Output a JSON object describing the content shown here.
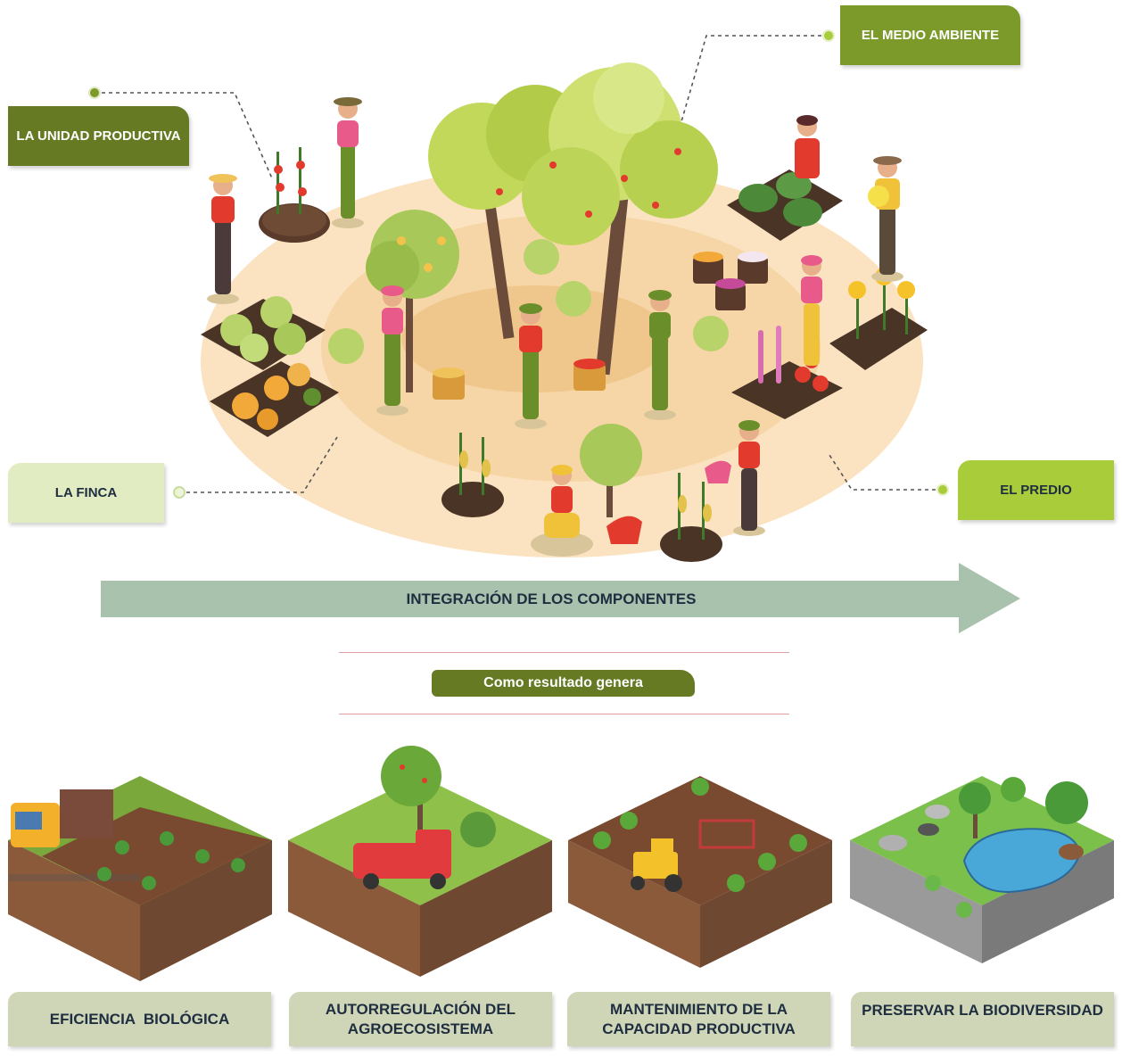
{
  "components": {
    "unidad_productiva": "LA UNIDAD PRODUCTIVA",
    "medio_ambiente": "EL MEDIO AMBIENTE",
    "finca": "LA FINCA",
    "predio": "EL PREDIO"
  },
  "arrow_label": "INTEGRACIÓN DE LOS COMPONENTES",
  "result_label": "Como resultado genera",
  "outcomes": [
    {
      "label": "EFICIENCIA  BIOLÓGICA"
    },
    {
      "label": "AUTORREGULACIÓN DEL AGROECOSISTEMA"
    },
    {
      "label": "MANTENIMIENTO DE LA CAPACIDAD PRODUCTIVA"
    },
    {
      "label": "PRESERVAR LA BIODIVERSIDAD"
    }
  ],
  "colors": {
    "dark_olive": "#667a23",
    "olive": "#7c9a2a",
    "lime": "#a8cc3a",
    "pale_green": "#e2ecc3",
    "arrow": "#a9c2ad",
    "navy_text": "#1f2d40",
    "ground": "#fbe3c2",
    "ground_inner": "#f4d09b"
  }
}
